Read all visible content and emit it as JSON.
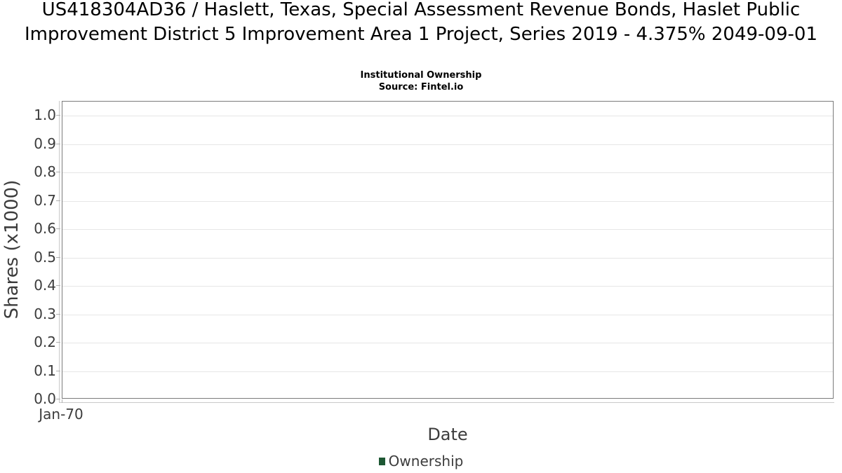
{
  "title": "US418304AD36 / Haslett, Texas, Special Assessment Revenue Bonds, Haslet Public Improvement District 5 Improvement Area 1 Project, Series 2019 - 4.375% 2049-09-01",
  "subtitle": "Institutional Ownership",
  "source_note": "Source: Fintel.io",
  "chart_data": {
    "type": "line",
    "title": "Institutional Ownership",
    "subtitle": "Source: Fintel.io",
    "xlabel": "Date",
    "ylabel": "Shares (x1000)",
    "x_ticks": [
      {
        "label": "Jan-70",
        "pos": 0.0
      }
    ],
    "y_ticks": [
      0.0,
      0.1,
      0.2,
      0.3,
      0.4,
      0.5,
      0.6,
      0.7,
      0.8,
      0.9,
      1.0
    ],
    "y_tick_decimals": 1,
    "ylim": [
      0.0,
      1.05
    ],
    "grid": true,
    "legend_position": "bottom-center",
    "series": [
      {
        "name": "Ownership",
        "color": "#1d5733",
        "x": [],
        "values": []
      }
    ]
  },
  "colors": {
    "series_green": "#1d5733",
    "plot_frame": "#7b7b7b",
    "gridline": "#e6e6e6",
    "axis_offset_line": "#c9c9c9",
    "tick_mark": "#b0b0b0",
    "tick_text": "#3c3c3c",
    "title_text": "#000000",
    "background": "#ffffff"
  }
}
